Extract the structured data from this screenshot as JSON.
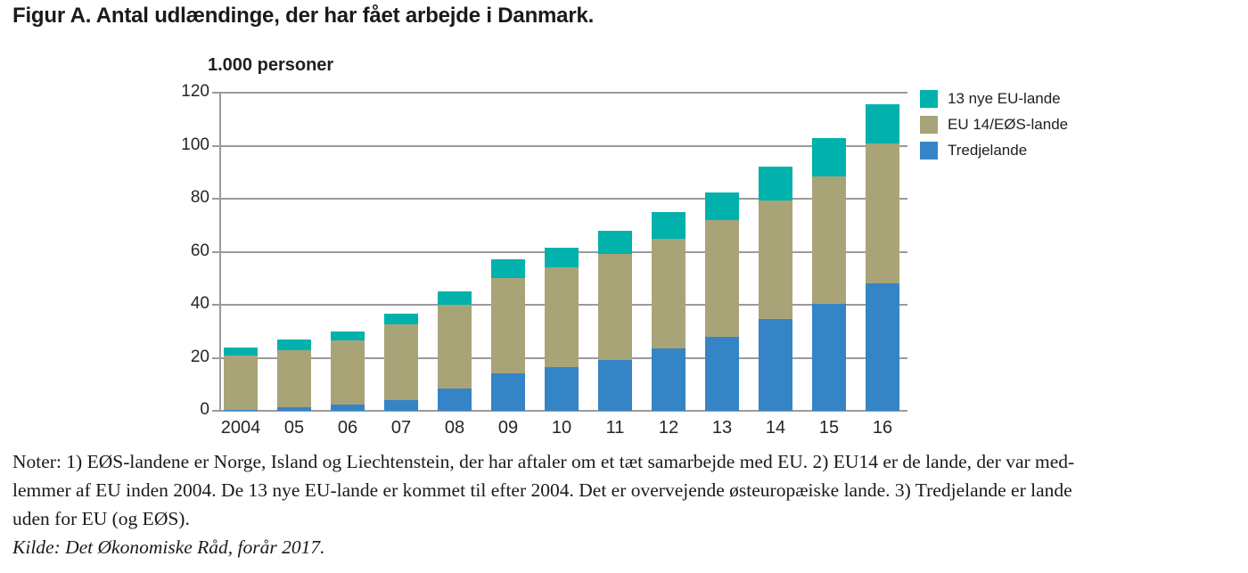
{
  "figure": {
    "title": "Figur A. Antal udlændinge, der har fået arbejde i Danmark.",
    "axis_title": "1.000 personer"
  },
  "colors": {
    "teal": "#00b1ac",
    "khaki": "#a9a478",
    "blue": "#3584c6",
    "grid": "#9b9b9b",
    "text": "#1a1a1a"
  },
  "chart_data": {
    "type": "bar",
    "stacked": true,
    "title": "Figur A. Antal udlændinge, der har fået arbejde i Danmark.",
    "ylabel": "1.000 personer",
    "xlabel": "",
    "ylim": [
      0,
      120
    ],
    "yticks": [
      0,
      20,
      40,
      60,
      80,
      100,
      120
    ],
    "grid": true,
    "legend_position": "right",
    "categories": [
      "2004",
      "05",
      "06",
      "07",
      "08",
      "09",
      "10",
      "11",
      "12",
      "13",
      "14",
      "15",
      "16"
    ],
    "series": [
      {
        "name": "Tredjelande",
        "color": "#3584c6",
        "values": [
          0.4,
          1.5,
          2.5,
          4,
          8.5,
          14,
          16.5,
          19,
          23.5,
          28,
          34.5,
          40.5,
          48
        ]
      },
      {
        "name": "EU 14/EØS-lande",
        "color": "#a9a478",
        "values": [
          20.6,
          21.5,
          24,
          28.5,
          31.5,
          36,
          37.5,
          40,
          41.5,
          44,
          45,
          48,
          53
        ]
      },
      {
        "name": "13 nye EU-lande",
        "color": "#00b1ac",
        "values": [
          3,
          4,
          3.5,
          4,
          5,
          7,
          7.5,
          9,
          10,
          10.5,
          12.5,
          14.5,
          14.5
        ]
      }
    ],
    "legend_order_top_to_bottom": [
      "13 nye EU-lande",
      "EU 14/EØS-lande",
      "Tredjelande"
    ]
  },
  "notes": {
    "lines": [
      "Noter: 1) EØS-landene er Norge, Island og Liechtenstein, der har aftaler om et tæt samarbejde med EU. 2) EU14 er de lande, der var med-",
      "lemmer af EU inden 2004. De 13 nye EU-lande er kommet til efter 2004. Det er overvejende østeuropæiske lande. 3) Tredjelande er lande",
      "uden for EU (og EØS)."
    ],
    "kilde": "Kilde: Det Økonomiske Råd, forår 2017."
  }
}
